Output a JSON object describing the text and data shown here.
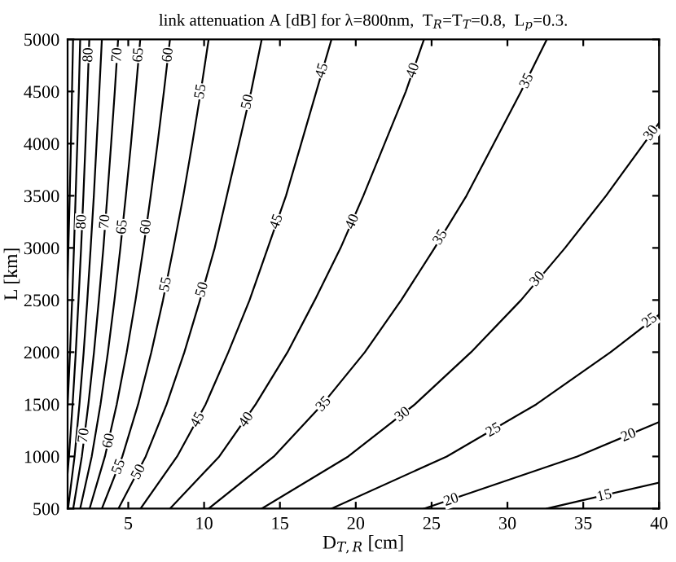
{
  "chart_data": {
    "type": "line",
    "title": "link attenuation A [dB] for λ=800nm,  T$_{R}$=T$_{T}$=0.8,  L$_{p}$=0.3.",
    "xlabel": "D$_{T,R}$ [cm]",
    "ylabel": "L [km]",
    "xlim": [
      1,
      40
    ],
    "xticks": [
      5,
      10,
      15,
      20,
      25,
      30,
      35,
      40
    ],
    "ylim": [
      500,
      5000
    ],
    "yticks": [
      500,
      1000,
      1500,
      2000,
      2500,
      3000,
      3500,
      4000,
      4500,
      5000
    ],
    "grid": false,
    "legend": false,
    "marker": "none",
    "line_style": "solid",
    "series": [
      {
        "color": "#000000",
        "x": [
          32.6,
          40
        ],
        "values": [
          500,
          750
        ]
      },
      {
        "color": "#000000",
        "x": [
          24.5,
          34.6,
          40
        ],
        "values": [
          500,
          1000,
          1330
        ]
      },
      {
        "color": "#000000",
        "x": [
          18.4,
          26.0,
          31.9,
          36.8,
          40
        ],
        "values": [
          500,
          1000,
          1500,
          2000,
          2360
        ]
      },
      {
        "color": "#000000",
        "x": [
          13.8,
          19.5,
          23.9,
          27.6,
          30.9,
          33.8,
          36.5,
          39.0,
          40
        ],
        "values": [
          500,
          1000,
          1500,
          2000,
          2500,
          3000,
          3500,
          4000,
          4200
        ]
      },
      {
        "color": "#000000",
        "x": [
          10.3,
          14.6,
          17.8,
          20.6,
          23.0,
          25.2,
          27.3,
          29.1,
          30.9,
          32.6
        ],
        "values": [
          500,
          1000,
          1500,
          2000,
          2500,
          3000,
          3500,
          4000,
          4500,
          5000
        ]
      },
      {
        "color": "#000000",
        "x": [
          7.75,
          11.0,
          13.4,
          15.5,
          17.3,
          19.0,
          20.5,
          21.9,
          23.3,
          24.5
        ],
        "values": [
          500,
          1000,
          1500,
          2000,
          2500,
          3000,
          3500,
          4000,
          4500,
          5000
        ]
      },
      {
        "color": "#000000",
        "x": [
          5.81,
          8.22,
          10.1,
          11.6,
          13.0,
          14.2,
          15.4,
          16.4,
          17.4,
          18.4
        ],
        "values": [
          500,
          1000,
          1500,
          2000,
          2500,
          3000,
          3500,
          4000,
          4500,
          5000
        ]
      },
      {
        "color": "#000000",
        "x": [
          4.35,
          6.15,
          7.53,
          8.7,
          9.73,
          10.7,
          11.5,
          12.3,
          13.1,
          13.8
        ],
        "values": [
          500,
          1000,
          1500,
          2000,
          2500,
          3000,
          3500,
          4000,
          4500,
          5000
        ]
      },
      {
        "color": "#000000",
        "x": [
          3.26,
          4.61,
          5.65,
          6.52,
          7.29,
          7.98,
          8.63,
          9.22,
          9.78,
          10.3
        ],
        "values": [
          500,
          1000,
          1500,
          2000,
          2500,
          3000,
          3500,
          4000,
          4500,
          5000
        ]
      },
      {
        "color": "#000000",
        "x": [
          2.45,
          3.46,
          4.24,
          4.9,
          5.48,
          6.0,
          6.48,
          6.93,
          7.35,
          7.75
        ],
        "values": [
          500,
          1000,
          1500,
          2000,
          2500,
          3000,
          3500,
          4000,
          4500,
          5000
        ]
      },
      {
        "color": "#000000",
        "x": [
          1.83,
          2.59,
          3.17,
          3.66,
          4.09,
          4.48,
          4.84,
          5.18,
          5.49,
          5.79
        ],
        "values": [
          500,
          1000,
          1500,
          2000,
          2500,
          3000,
          3500,
          4000,
          4500,
          5000
        ]
      },
      {
        "color": "#000000",
        "x": [
          1.37,
          1.94,
          2.37,
          2.74,
          3.06,
          3.36,
          3.62,
          3.87,
          4.11,
          4.33
        ],
        "values": [
          500,
          1000,
          1500,
          2000,
          2500,
          3000,
          3500,
          4000,
          4500,
          5000
        ]
      },
      {
        "color": "#000000",
        "x": [
          1.03,
          1.46,
          1.78,
          2.06,
          2.3,
          2.52,
          2.73,
          2.91,
          3.09,
          3.26
        ],
        "values": [
          500,
          1000,
          1500,
          2000,
          2500,
          3000,
          3500,
          4000,
          4500,
          5000
        ]
      },
      {
        "color": "#000000",
        "x": [
          1,
          1.09,
          1.33,
          1.54,
          1.72,
          1.89,
          2.04,
          2.18,
          2.31,
          2.43
        ],
        "values": [
          840,
          1000,
          1500,
          2000,
          2500,
          3000,
          3500,
          4000,
          4500,
          5000
        ]
      },
      {
        "color": "#000000",
        "x": [
          1,
          1.16,
          1.3,
          1.42,
          1.53,
          1.64,
          1.74,
          1.83
        ],
        "values": [
          1490,
          2000,
          2500,
          3000,
          3500,
          4000,
          4500,
          5000
        ]
      },
      {
        "color": "#000000",
        "x": [
          1,
          1.05,
          1.14,
          1.22,
          1.29,
          1.36
        ],
        "values": [
          2700,
          3000,
          3500,
          4000,
          4500,
          5000
        ]
      }
    ],
    "annotations": [
      {
        "text": "80",
        "x": 2.4,
        "y": 4850
      },
      {
        "text": "70",
        "x": 4.3,
        "y": 4850
      },
      {
        "text": "65",
        "x": 5.7,
        "y": 4850
      },
      {
        "text": "60",
        "x": 7.65,
        "y": 4850
      },
      {
        "text": "55",
        "x": 9.8,
        "y": 4500
      },
      {
        "text": "80",
        "x": 1.96,
        "y": 3250
      },
      {
        "text": "70",
        "x": 3.49,
        "y": 3250
      },
      {
        "text": "65",
        "x": 4.63,
        "y": 3200
      },
      {
        "text": "60",
        "x": 6.2,
        "y": 3200
      },
      {
        "text": "55",
        "x": 7.5,
        "y": 2650
      },
      {
        "text": "50",
        "x": 9.9,
        "y": 2600
      },
      {
        "text": "70",
        "x": 2.1,
        "y": 1200
      },
      {
        "text": "60",
        "x": 3.75,
        "y": 1150
      },
      {
        "text": "55",
        "x": 4.4,
        "y": 900
      },
      {
        "text": "50",
        "x": 5.7,
        "y": 850
      },
      {
        "text": "45",
        "x": 9.6,
        "y": 1350
      },
      {
        "text": "50",
        "x": 12.9,
        "y": 4400
      },
      {
        "text": "45",
        "x": 17.8,
        "y": 4700
      },
      {
        "text": "40",
        "x": 23.8,
        "y": 4700
      },
      {
        "text": "45",
        "x": 14.8,
        "y": 3250
      },
      {
        "text": "40",
        "x": 19.8,
        "y": 3250
      },
      {
        "text": "35",
        "x": 25.6,
        "y": 3100
      },
      {
        "text": "40",
        "x": 12.8,
        "y": 1350
      },
      {
        "text": "35",
        "x": 17.9,
        "y": 1500
      },
      {
        "text": "30",
        "x": 23.1,
        "y": 1400
      },
      {
        "text": "35",
        "x": 31.3,
        "y": 4600
      },
      {
        "text": "30",
        "x": 39.5,
        "y": 4100
      },
      {
        "text": "30",
        "x": 32.0,
        "y": 2700
      },
      {
        "text": "25",
        "x": 39.4,
        "y": 2300
      },
      {
        "text": "25",
        "x": 29.1,
        "y": 1250
      },
      {
        "text": "20",
        "x": 38.0,
        "y": 1200
      },
      {
        "text": "15",
        "x": 36.4,
        "y": 620
      },
      {
        "text": "20",
        "x": 26.3,
        "y": 580
      }
    ]
  }
}
